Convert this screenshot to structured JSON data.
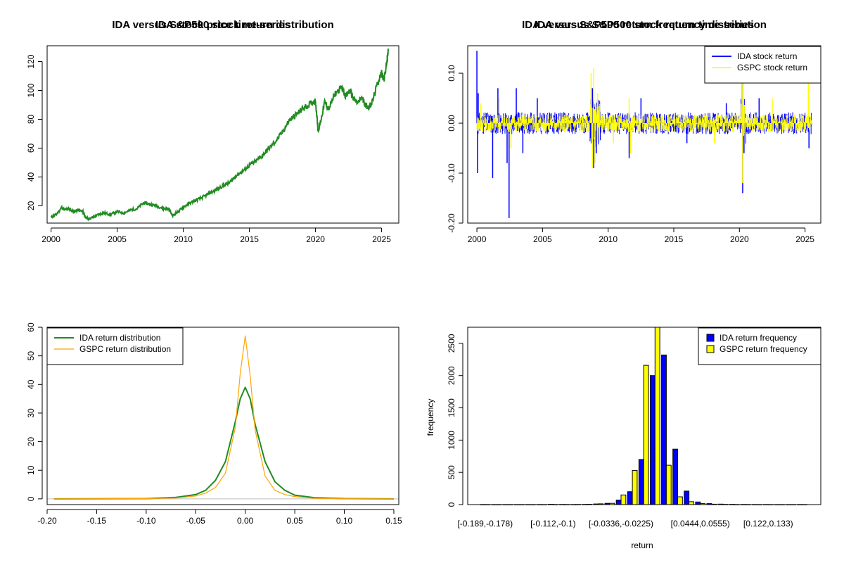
{
  "colors": {
    "ida_price": "#228b22",
    "ida_return": "#0000ff",
    "gspc_return": "#ffff00",
    "ida_density": "#228b22",
    "gspc_density": "#ffa500",
    "ida_freq": "#0000ff",
    "gspc_freq": "#ffff00"
  },
  "chart_data": [
    {
      "id": "price",
      "type": "line",
      "title": "IDA stock price time-series",
      "xlabel": "",
      "ylabel": "",
      "xlim": [
        1999.7,
        2026.3
      ],
      "ylim": [
        8,
        131
      ],
      "xticks": [
        2000,
        2005,
        2010,
        2015,
        2020,
        2025
      ],
      "yticks": [
        20,
        40,
        60,
        80,
        100,
        120
      ],
      "series": [
        {
          "x": [
            2000.0,
            2000.4,
            2000.8,
            2001.0,
            2001.3,
            2001.7,
            2002.0,
            2002.4,
            2002.6,
            2002.8,
            2003.2,
            2003.6,
            2004.0,
            2004.5,
            2005.0,
            2005.5,
            2006.0,
            2006.5,
            2007.0,
            2007.5,
            2008.0,
            2008.5,
            2008.9,
            2009.2,
            2009.6,
            2010.0,
            2010.5,
            2011.0,
            2011.5,
            2012.0,
            2012.5,
            2013.0,
            2013.5,
            2014.0,
            2014.5,
            2015.0,
            2015.5,
            2016.0,
            2016.5,
            2017.0,
            2017.5,
            2018.0,
            2018.5,
            2019.0,
            2019.5,
            2020.0,
            2020.2,
            2020.4,
            2020.7,
            2021.0,
            2021.5,
            2022.0,
            2022.3,
            2022.6,
            2022.9,
            2023.2,
            2023.5,
            2023.8,
            2024.0,
            2024.3,
            2024.7,
            2025.0,
            2025.2,
            2025.4,
            2025.5
          ],
          "values": [
            12,
            14,
            19,
            17,
            18,
            16,
            17,
            16,
            12,
            11,
            12,
            14,
            15,
            14,
            16,
            15,
            17,
            18,
            22,
            21,
            20,
            18,
            18,
            13,
            16,
            19,
            22,
            24,
            26,
            29,
            31,
            34,
            36,
            41,
            44,
            48,
            51,
            55,
            60,
            65,
            71,
            79,
            83,
            87,
            90,
            93,
            72,
            79,
            92,
            87,
            98,
            102,
            96,
            100,
            94,
            91,
            95,
            90,
            88,
            92,
            105,
            112,
            108,
            120,
            127
          ]
        }
      ]
    },
    {
      "id": "returns",
      "type": "line",
      "title": "IDA versus S&P500 stock return time-series",
      "xlabel": "",
      "ylabel": "",
      "xlim": [
        1999.3,
        2026.2
      ],
      "ylim": [
        -0.2,
        0.155
      ],
      "xticks": [
        2000,
        2005,
        2010,
        2015,
        2020,
        2025
      ],
      "yticks": [
        -0.2,
        -0.1,
        0.0,
        0.1
      ],
      "ytick_labels": [
        "-0.20",
        "-0.10",
        "0.00",
        "0.10"
      ],
      "legend_position": "top-right",
      "series": [
        {
          "name": "IDA stock return",
          "style": "spikes",
          "x": [
            2000.0,
            2000.05,
            2000.1,
            2001.2,
            2001.6,
            2002.3,
            2002.45,
            2003.0,
            2003.5,
            2004.6,
            2008.8,
            2008.9,
            2009.1,
            2011.6,
            2012.5,
            2016.0,
            2019.0,
            2020.2,
            2020.25,
            2020.35,
            2021.5,
            2025.3
          ],
          "values": [
            0.145,
            -0.1,
            0.06,
            -0.11,
            0.07,
            -0.08,
            -0.19,
            0.07,
            -0.06,
            0.05,
            0.07,
            -0.09,
            -0.06,
            -0.07,
            0.05,
            -0.04,
            0.04,
            0.09,
            -0.14,
            -0.06,
            0.05,
            -0.05
          ]
        },
        {
          "name": "GSPC stock return",
          "style": "spikes",
          "x": [
            2000.3,
            2001.7,
            2002.6,
            2008.7,
            2008.8,
            2008.9,
            2009.0,
            2009.2,
            2010.4,
            2011.6,
            2011.7,
            2018.1,
            2020.2,
            2020.25,
            2020.3,
            2022.5,
            2025.25
          ],
          "values": [
            0.04,
            0.05,
            -0.05,
            0.1,
            -0.09,
            0.11,
            -0.08,
            0.06,
            -0.04,
            0.05,
            -0.06,
            -0.04,
            0.09,
            -0.12,
            0.09,
            0.05,
            0.09
          ]
        }
      ]
    },
    {
      "id": "density",
      "type": "line",
      "title": "IDA versus S&P500 stock return distribution",
      "xlabel": "",
      "ylabel": "",
      "xlim": [
        -0.2,
        0.155
      ],
      "ylim": [
        -2,
        60
      ],
      "xticks": [
        -0.2,
        -0.15,
        -0.1,
        -0.05,
        0.0,
        0.05,
        0.1,
        0.15
      ],
      "xtick_labels": [
        "-0.20",
        "-0.15",
        "-0.10",
        "-0.05",
        "0.00",
        "0.05",
        "0.10",
        "0.15"
      ],
      "yticks": [
        0,
        10,
        20,
        30,
        40,
        50,
        60
      ],
      "legend_position": "top-left",
      "series": [
        {
          "name": "IDA return distribution",
          "x": [
            -0.193,
            -0.1,
            -0.07,
            -0.05,
            -0.04,
            -0.03,
            -0.02,
            -0.01,
            -0.005,
            0.0,
            0.005,
            0.01,
            0.02,
            0.03,
            0.04,
            0.05,
            0.07,
            0.1,
            0.15
          ],
          "values": [
            0,
            0.1,
            0.5,
            1.5,
            3,
            6.5,
            13,
            27,
            35,
            39,
            35,
            26,
            13,
            6,
            3,
            1.3,
            0.4,
            0.1,
            0
          ]
        },
        {
          "name": "GSPC return distribution",
          "x": [
            -0.193,
            -0.1,
            -0.07,
            -0.05,
            -0.04,
            -0.03,
            -0.02,
            -0.01,
            -0.005,
            0.0,
            0.005,
            0.01,
            0.02,
            0.03,
            0.04,
            0.05,
            0.07,
            0.1,
            0.15
          ],
          "values": [
            0,
            0.1,
            0.3,
            1,
            2,
            4,
            9,
            25,
            44,
            57,
            43,
            24,
            8,
            3,
            1.5,
            0.8,
            0.2,
            0.05,
            0
          ]
        }
      ]
    },
    {
      "id": "frequency",
      "type": "bar",
      "title": "IDA versus S&P500 return frequency distribution",
      "xlabel": "return",
      "ylabel": "frequency",
      "ylim": [
        0,
        2750
      ],
      "yticks": [
        0,
        500,
        1000,
        1500,
        2000,
        2500
      ],
      "legend_position": "top-right",
      "category_labels": [
        "[-0.189,-0.178)",
        "[-0.112,-0.1)",
        "[-0.0336,-0.0225)",
        "[0.0444,0.0555)",
        "[0.122,0.133)"
      ],
      "series": [
        {
          "name": "IDA return frequency",
          "values": [
            1,
            0,
            0,
            0,
            0,
            1,
            5,
            2,
            1,
            3,
            10,
            20,
            70,
            200,
            700,
            2000,
            2320,
            860,
            210,
            40,
            15,
            8,
            4,
            2,
            1,
            1,
            0,
            0,
            1
          ]
        },
        {
          "name": "GSPC return frequency",
          "values": [
            0,
            0,
            0,
            0,
            0,
            0,
            1,
            1,
            2,
            5,
            12,
            20,
            150,
            530,
            2160,
            2800,
            610,
            120,
            45,
            15,
            7,
            3,
            1,
            1,
            0,
            0,
            0,
            0,
            0
          ]
        }
      ]
    }
  ]
}
